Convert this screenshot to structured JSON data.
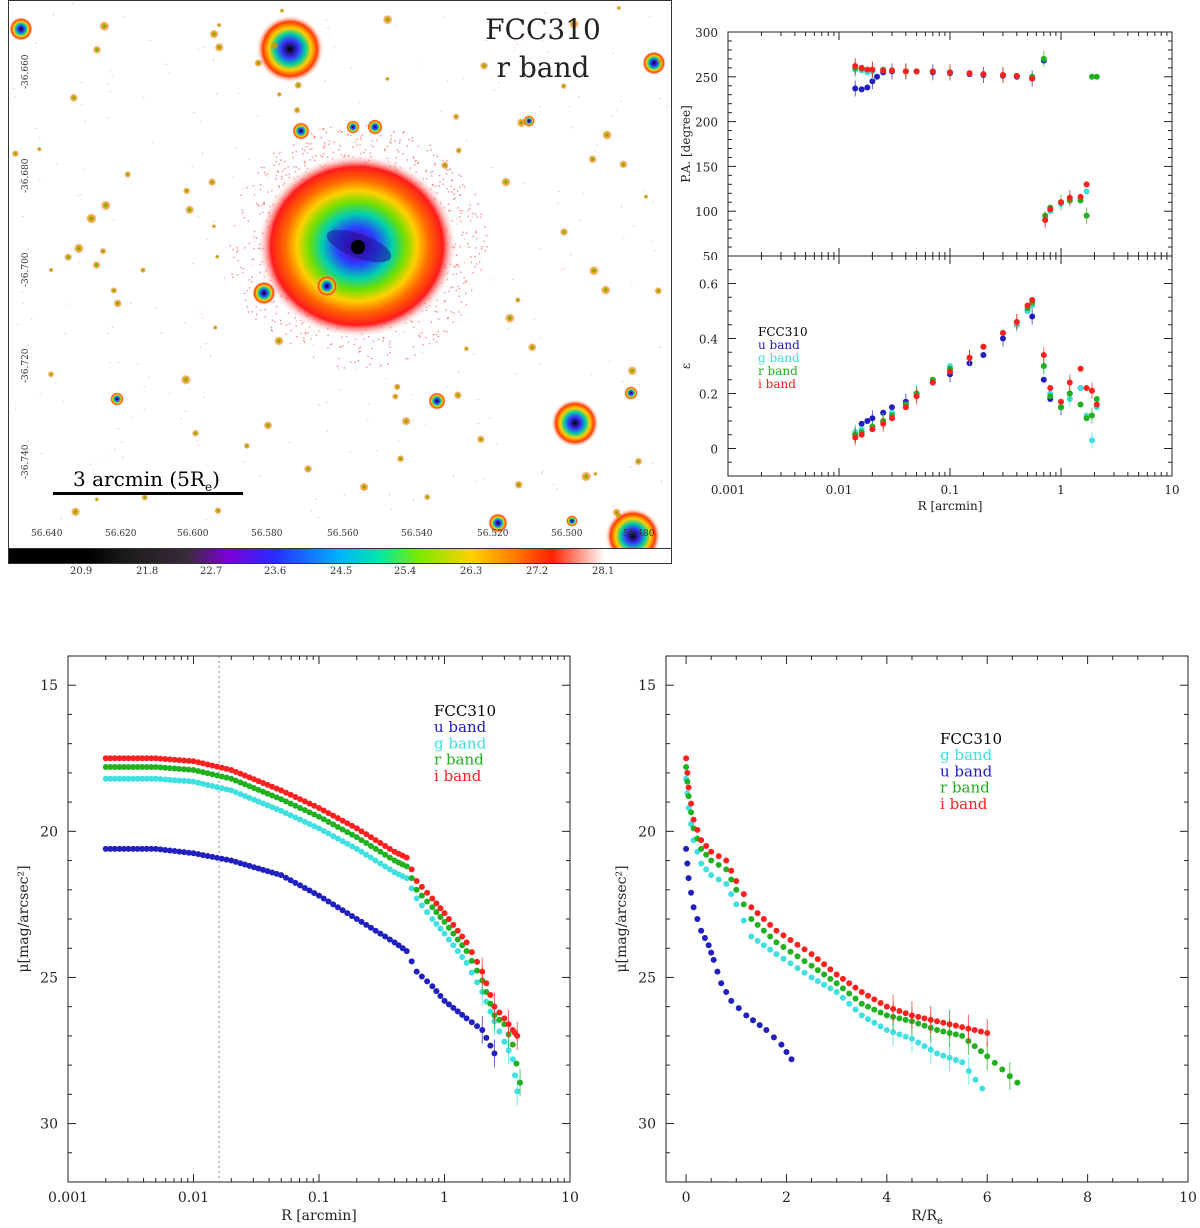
{
  "image_panel": {
    "title_line1": "FCC310",
    "title_line2": "r band",
    "scale_bar": "3 arcmin (5R",
    "scale_bar_sub": "e",
    "scale_bar_end": ")",
    "dec_ticks": [
      "-36.660",
      "-36.680",
      "-36.700",
      "-36.720",
      "-36.740"
    ],
    "ra_ticks": [
      "56.640",
      "56.620",
      "56.600",
      "56.580",
      "56.560",
      "56.540",
      "56.520",
      "56.500",
      "56.480"
    ],
    "colorbar_ticks": [
      "20.9",
      "21.8",
      "22.7",
      "23.6",
      "24.5",
      "25.4",
      "26.3",
      "27.2",
      "28.1"
    ]
  },
  "chart_data": [
    {
      "type": "scatter",
      "title": "",
      "xlabel": "R [arcmin]",
      "ylabel": "P.A. [degree]",
      "xscale": "log",
      "xlim": [
        0.001,
        10
      ],
      "ylim": [
        50,
        300
      ],
      "yticks": [
        50,
        100,
        150,
        200,
        250,
        300
      ],
      "series": [
        {
          "name": "u band",
          "color": "#2020c0",
          "x": [
            0.014,
            0.016,
            0.018,
            0.02,
            0.022,
            0.025,
            0.03,
            0.04,
            0.05,
            0.07,
            0.1,
            0.15,
            0.2,
            0.3,
            0.4,
            0.55,
            0.7
          ],
          "y": [
            237,
            236,
            238,
            245,
            250,
            255,
            256,
            256,
            256,
            255,
            254,
            253,
            252,
            251,
            250,
            248,
            268
          ]
        },
        {
          "name": "g band",
          "color": "#40e0e0",
          "x": [
            0.014,
            0.016,
            0.018,
            0.02,
            0.025,
            0.03,
            0.04,
            0.05,
            0.07,
            0.1,
            0.15,
            0.2,
            0.3,
            0.4,
            0.55,
            0.72,
            0.8,
            1.0,
            1.2,
            1.5,
            1.7
          ],
          "y": [
            258,
            257,
            255,
            256,
            257,
            257,
            256,
            256,
            256,
            255,
            254,
            253,
            252,
            251,
            249,
            92,
            100,
            108,
            114,
            115,
            122
          ]
        },
        {
          "name": "r band",
          "color": "#20b020",
          "x": [
            0.014,
            0.016,
            0.018,
            0.02,
            0.025,
            0.03,
            0.04,
            0.05,
            0.07,
            0.1,
            0.15,
            0.2,
            0.3,
            0.4,
            0.55,
            0.7,
            0.72,
            0.8,
            1.0,
            1.2,
            1.5,
            1.7,
            1.9,
            2.1
          ],
          "y": [
            260,
            259,
            258,
            258,
            258,
            257,
            256,
            256,
            256,
            255,
            254,
            253,
            252,
            251,
            250,
            270,
            95,
            104,
            110,
            112,
            112,
            95,
            250,
            250
          ]
        },
        {
          "name": "i band",
          "color": "#ff2020",
          "x": [
            0.014,
            0.016,
            0.018,
            0.02,
            0.025,
            0.03,
            0.04,
            0.05,
            0.07,
            0.1,
            0.15,
            0.2,
            0.3,
            0.4,
            0.55,
            0.72,
            0.8,
            1.0,
            1.2,
            1.5,
            1.7
          ],
          "y": [
            262,
            260,
            258,
            258,
            257,
            257,
            256,
            256,
            256,
            255,
            254,
            253,
            252,
            251,
            248,
            90,
            102,
            110,
            115,
            116,
            130
          ]
        }
      ]
    },
    {
      "type": "scatter",
      "xlabel": "R [arcmin]",
      "ylabel": "ε",
      "xscale": "log",
      "xlim": [
        0.001,
        10
      ],
      "ylim": [
        -0.1,
        0.7
      ],
      "yticks": [
        0,
        0.2,
        0.4,
        0.6
      ],
      "xticks": [
        "0.001",
        "0.01",
        "0.1",
        "1",
        "10"
      ],
      "legend": {
        "title": "FCC310",
        "entries": [
          "u band",
          "g band",
          "r band",
          "i band"
        ]
      },
      "series": [
        {
          "name": "u band",
          "color": "#2020c0",
          "x": [
            0.014,
            0.016,
            0.018,
            0.02,
            0.025,
            0.03,
            0.04,
            0.05,
            0.07,
            0.1,
            0.15,
            0.2,
            0.3,
            0.4,
            0.5,
            0.55,
            0.7,
            0.8,
            1.0,
            1.2,
            1.5
          ],
          "y": [
            0.05,
            0.09,
            0.1,
            0.11,
            0.13,
            0.15,
            0.17,
            0.2,
            0.24,
            0.27,
            0.31,
            0.34,
            0.4,
            0.45,
            0.5,
            0.48,
            0.25,
            0.18,
            0.15,
            0.2,
            0.22
          ]
        },
        {
          "name": "g band",
          "color": "#40e0e0",
          "x": [
            0.014,
            0.016,
            0.02,
            0.025,
            0.03,
            0.04,
            0.05,
            0.07,
            0.1,
            0.15,
            0.2,
            0.3,
            0.4,
            0.5,
            0.55,
            0.7,
            0.8,
            1.0,
            1.2,
            1.5,
            1.7,
            1.9,
            2.1
          ],
          "y": [
            0.06,
            0.07,
            0.08,
            0.1,
            0.13,
            0.16,
            0.2,
            0.25,
            0.3,
            0.33,
            0.37,
            0.42,
            0.45,
            0.5,
            0.52,
            0.3,
            0.2,
            0.15,
            0.18,
            0.22,
            0.12,
            0.03,
            0.15
          ]
        },
        {
          "name": "r band",
          "color": "#20b020",
          "x": [
            0.014,
            0.016,
            0.02,
            0.025,
            0.03,
            0.04,
            0.05,
            0.07,
            0.1,
            0.15,
            0.2,
            0.3,
            0.4,
            0.5,
            0.55,
            0.7,
            0.8,
            1.0,
            1.2,
            1.5,
            1.7,
            1.9,
            2.1
          ],
          "y": [
            0.05,
            0.06,
            0.08,
            0.1,
            0.12,
            0.16,
            0.2,
            0.25,
            0.29,
            0.33,
            0.37,
            0.42,
            0.46,
            0.51,
            0.53,
            0.3,
            0.19,
            0.15,
            0.2,
            0.16,
            0.11,
            0.12,
            0.18
          ]
        },
        {
          "name": "i band",
          "color": "#ff2020",
          "x": [
            0.014,
            0.016,
            0.02,
            0.025,
            0.03,
            0.04,
            0.05,
            0.07,
            0.1,
            0.15,
            0.2,
            0.3,
            0.4,
            0.5,
            0.55,
            0.7,
            0.8,
            1.0,
            1.2,
            1.5,
            1.7,
            1.9,
            2.1
          ],
          "y": [
            0.04,
            0.05,
            0.07,
            0.09,
            0.11,
            0.15,
            0.19,
            0.24,
            0.28,
            0.33,
            0.37,
            0.42,
            0.46,
            0.52,
            0.54,
            0.34,
            0.22,
            0.17,
            0.24,
            0.29,
            0.22,
            0.21,
            0.16
          ]
        }
      ]
    },
    {
      "type": "scatter",
      "xlabel": "R [arcmin]",
      "ylabel": "μ[mag/arcsec²]",
      "xscale": "log",
      "xlim": [
        0.001,
        10
      ],
      "ylim": [
        32,
        14
      ],
      "yticks": [
        15,
        20,
        25,
        30
      ],
      "xticks": [
        "0.001",
        "0.01",
        "0.1",
        "1",
        "10"
      ],
      "vline_x": 0.016,
      "legend": {
        "title": "FCC310",
        "entries": [
          "u band",
          "g band",
          "r band",
          "i band"
        ]
      },
      "series": [
        {
          "name": "u band",
          "color": "#2020c0",
          "curve": [
            [
              0.002,
              20.6
            ],
            [
              0.005,
              20.6
            ],
            [
              0.01,
              20.75
            ],
            [
              0.02,
              21.0
            ],
            [
              0.05,
              21.5
            ],
            [
              0.1,
              22.2
            ],
            [
              0.2,
              23.0
            ],
            [
              0.4,
              23.8
            ],
            [
              0.5,
              24.1
            ],
            [
              0.6,
              24.8
            ],
            [
              0.8,
              25.3
            ],
            [
              1.0,
              25.8
            ],
            [
              1.5,
              26.4
            ],
            [
              2.0,
              26.8
            ],
            [
              2.5,
              27.6
            ]
          ]
        },
        {
          "name": "g band",
          "color": "#40e0e0",
          "curve": [
            [
              0.002,
              18.2
            ],
            [
              0.005,
              18.2
            ],
            [
              0.01,
              18.3
            ],
            [
              0.02,
              18.6
            ],
            [
              0.05,
              19.3
            ],
            [
              0.1,
              19.9
            ],
            [
              0.2,
              20.6
            ],
            [
              0.4,
              21.4
            ],
            [
              0.5,
              21.6
            ],
            [
              0.6,
              22.3
            ],
            [
              0.8,
              23.0
            ],
            [
              1.0,
              23.5
            ],
            [
              1.5,
              24.5
            ],
            [
              2.0,
              25.5
            ],
            [
              2.5,
              26.5
            ],
            [
              3.0,
              27.2
            ],
            [
              3.5,
              27.8
            ],
            [
              3.8,
              28.9
            ]
          ]
        },
        {
          "name": "r band",
          "color": "#20b020",
          "curve": [
            [
              0.002,
              17.8
            ],
            [
              0.005,
              17.8
            ],
            [
              0.01,
              17.9
            ],
            [
              0.02,
              18.2
            ],
            [
              0.05,
              18.9
            ],
            [
              0.1,
              19.5
            ],
            [
              0.2,
              20.2
            ],
            [
              0.4,
              21.0
            ],
            [
              0.5,
              21.2
            ],
            [
              0.6,
              22.0
            ],
            [
              0.8,
              22.6
            ],
            [
              1.0,
              23.1
            ],
            [
              1.5,
              24.1
            ],
            [
              2.0,
              25.1
            ],
            [
              2.5,
              26.3
            ],
            [
              3.0,
              26.6
            ],
            [
              3.5,
              27.3
            ],
            [
              4.0,
              28.6
            ]
          ]
        },
        {
          "name": "i band",
          "color": "#ff2020",
          "curve": [
            [
              0.002,
              17.5
            ],
            [
              0.005,
              17.5
            ],
            [
              0.01,
              17.6
            ],
            [
              0.02,
              17.9
            ],
            [
              0.05,
              18.6
            ],
            [
              0.1,
              19.2
            ],
            [
              0.2,
              19.9
            ],
            [
              0.4,
              20.7
            ],
            [
              0.5,
              20.9
            ],
            [
              0.6,
              21.7
            ],
            [
              0.8,
              22.3
            ],
            [
              1.0,
              22.8
            ],
            [
              1.5,
              23.8
            ],
            [
              2.0,
              24.8
            ],
            [
              2.5,
              26.0
            ],
            [
              3.0,
              26.4
            ],
            [
              3.5,
              26.8
            ],
            [
              3.8,
              27.0
            ]
          ]
        }
      ]
    },
    {
      "type": "scatter",
      "xlabel": "R/R",
      "xlabel_sub": "e",
      "ylabel": "μ[mag/arcsec²]",
      "xscale": "linear",
      "xlim": [
        -0.4,
        10
      ],
      "ylim": [
        32,
        14
      ],
      "yticks": [
        15,
        20,
        25,
        30
      ],
      "xticks": [
        "0",
        "2",
        "4",
        "6",
        "8",
        "10"
      ],
      "legend": {
        "title": "FCC310",
        "entries": [
          "g band",
          "u band",
          "r band",
          "i band"
        ]
      },
      "series": [
        {
          "name": "g band",
          "color": "#40e0e0",
          "curve": [
            [
              0.0,
              18.2
            ],
            [
              0.05,
              19.2
            ],
            [
              0.15,
              20.3
            ],
            [
              0.3,
              21.1
            ],
            [
              0.5,
              21.5
            ],
            [
              0.8,
              21.8
            ],
            [
              1.0,
              22.5
            ],
            [
              1.3,
              23.6
            ],
            [
              1.8,
              24.2
            ],
            [
              2.5,
              25.0
            ],
            [
              3.0,
              25.5
            ],
            [
              3.5,
              26.3
            ],
            [
              4.0,
              26.8
            ],
            [
              4.5,
              27.1
            ],
            [
              5.0,
              27.6
            ],
            [
              5.5,
              27.9
            ],
            [
              5.9,
              28.8
            ]
          ]
        },
        {
          "name": "u band",
          "color": "#2020c0",
          "curve": [
            [
              0.0,
              20.6
            ],
            [
              0.05,
              21.6
            ],
            [
              0.15,
              22.6
            ],
            [
              0.3,
              23.4
            ],
            [
              0.45,
              23.9
            ],
            [
              0.55,
              24.4
            ],
            [
              0.7,
              25.2
            ],
            [
              0.9,
              25.8
            ],
            [
              1.2,
              26.3
            ],
            [
              1.6,
              26.8
            ],
            [
              1.9,
              27.3
            ],
            [
              2.1,
              27.8
            ]
          ]
        },
        {
          "name": "r band",
          "color": "#20b020",
          "curve": [
            [
              0.0,
              17.8
            ],
            [
              0.05,
              18.8
            ],
            [
              0.15,
              19.9
            ],
            [
              0.3,
              20.6
            ],
            [
              0.5,
              21.0
            ],
            [
              0.8,
              21.3
            ],
            [
              1.0,
              22.0
            ],
            [
              1.3,
              23.0
            ],
            [
              1.8,
              23.8
            ],
            [
              2.5,
              24.6
            ],
            [
              3.0,
              25.2
            ],
            [
              3.5,
              25.9
            ],
            [
              4.0,
              26.3
            ],
            [
              4.5,
              26.5
            ],
            [
              5.0,
              26.8
            ],
            [
              5.5,
              27.0
            ],
            [
              6.0,
              27.7
            ],
            [
              6.6,
              28.6
            ]
          ]
        },
        {
          "name": "i band",
          "color": "#ff2020",
          "curve": [
            [
              0.0,
              17.5
            ],
            [
              0.05,
              18.5
            ],
            [
              0.15,
              19.6
            ],
            [
              0.3,
              20.3
            ],
            [
              0.5,
              20.7
            ],
            [
              0.8,
              21.0
            ],
            [
              1.0,
              21.7
            ],
            [
              1.3,
              22.6
            ],
            [
              1.8,
              23.4
            ],
            [
              2.5,
              24.2
            ],
            [
              3.0,
              24.9
            ],
            [
              3.5,
              25.5
            ],
            [
              4.0,
              26.0
            ],
            [
              4.5,
              26.3
            ],
            [
              5.0,
              26.5
            ],
            [
              5.5,
              26.7
            ],
            [
              6.0,
              26.9
            ]
          ]
        }
      ]
    }
  ]
}
